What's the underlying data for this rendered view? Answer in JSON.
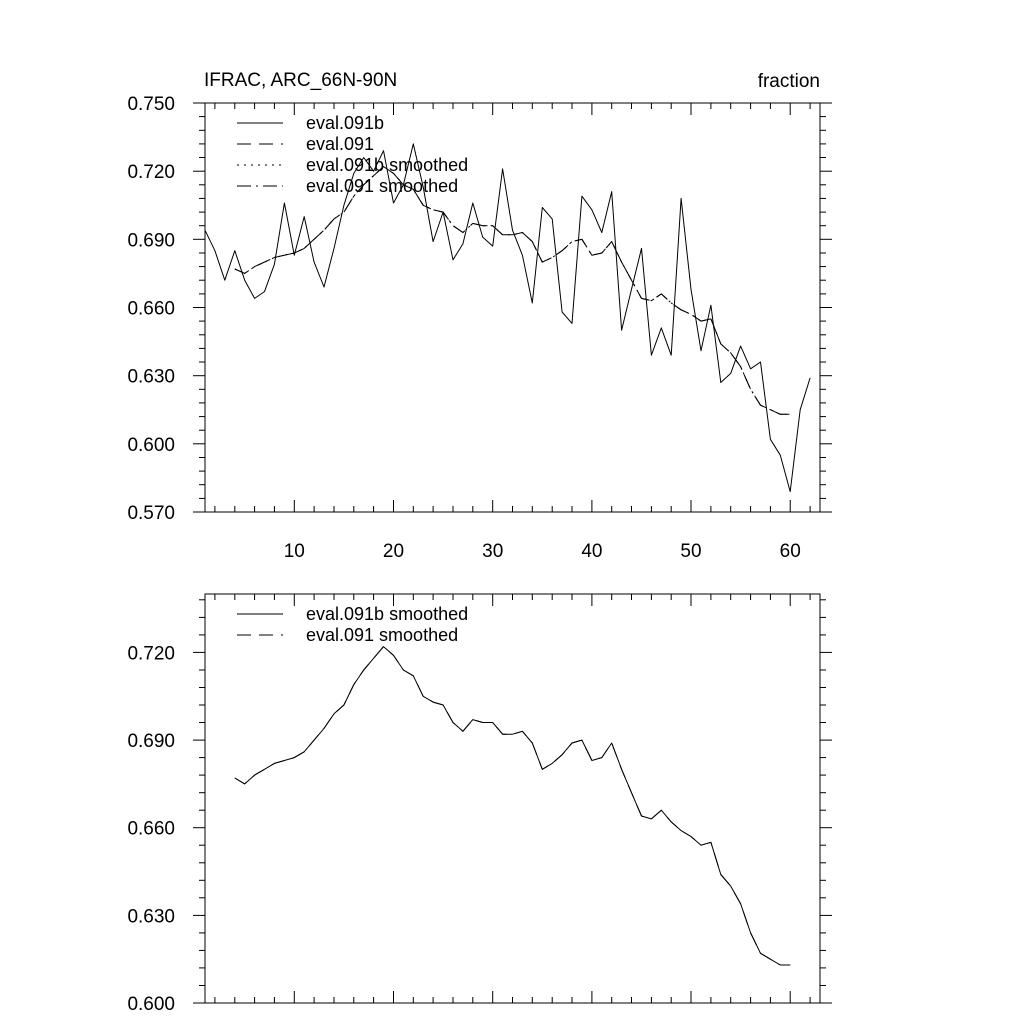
{
  "chart_data": [
    {
      "type": "line",
      "title": "IFRAC, ARC_66N-90N",
      "units": "fraction",
      "xlabel": "",
      "ylabel": "",
      "xlim": [
        1,
        63
      ],
      "ylim": [
        0.57,
        0.75
      ],
      "x_ticks": [
        10,
        20,
        30,
        40,
        50,
        60
      ],
      "x_tick_labels": [
        "10",
        "20",
        "30",
        "40",
        "50",
        "60"
      ],
      "y_ticks": [
        0.57,
        0.6,
        0.63,
        0.66,
        0.69,
        0.72,
        0.75
      ],
      "y_tick_labels": [
        "0.570",
        "0.600",
        "0.630",
        "0.660",
        "0.690",
        "0.720",
        "0.750"
      ],
      "legend": "top-left",
      "grid": false,
      "series": [
        {
          "name": "eval.091b",
          "dash": "solid",
          "x": [
            1,
            2,
            3,
            4,
            5,
            6,
            7,
            8,
            9,
            10,
            11,
            12,
            13,
            14,
            15,
            16,
            17,
            18,
            19,
            20,
            21,
            22,
            23,
            24,
            25,
            26,
            27,
            28,
            29,
            30,
            31,
            32,
            33,
            34,
            35,
            36,
            37,
            38,
            39,
            40,
            41,
            42,
            43,
            44,
            45,
            46,
            47,
            48,
            49,
            50,
            51,
            52,
            53,
            54,
            55,
            56,
            57,
            58,
            59,
            60,
            61,
            62
          ],
          "values": [
            0.694,
            0.685,
            0.672,
            0.685,
            0.672,
            0.664,
            0.667,
            0.679,
            0.706,
            0.683,
            0.7,
            0.68,
            0.669,
            0.686,
            0.705,
            0.719,
            0.726,
            0.72,
            0.729,
            0.706,
            0.714,
            0.732,
            0.713,
            0.689,
            0.702,
            0.681,
            0.688,
            0.706,
            0.691,
            0.687,
            0.721,
            0.694,
            0.683,
            0.662,
            0.704,
            0.699,
            0.658,
            0.653,
            0.709,
            0.703,
            0.693,
            0.711,
            0.65,
            0.668,
            0.686,
            0.639,
            0.651,
            0.639,
            0.708,
            0.668,
            0.641,
            0.661,
            0.627,
            0.631,
            0.643,
            0.633,
            0.636,
            0.602,
            0.595,
            0.579,
            0.615,
            0.629
          ]
        },
        {
          "name": "eval.091",
          "dash": "dash",
          "x": [
            4,
            5,
            6,
            7,
            8,
            9,
            10,
            11,
            12,
            13,
            14,
            15,
            16,
            17,
            18,
            19,
            20,
            21,
            22,
            23,
            24,
            25,
            26,
            27,
            28,
            29,
            30,
            31,
            32,
            33,
            34,
            35,
            36,
            37,
            38,
            39,
            40,
            41,
            42,
            43,
            44,
            45,
            46,
            47,
            48,
            49,
            50,
            51,
            52,
            53,
            54,
            55,
            56,
            57,
            58,
            59,
            60
          ],
          "values": [
            0.677,
            0.675,
            0.678,
            0.68,
            0.682,
            0.683,
            0.684,
            0.686,
            0.69,
            0.694,
            0.699,
            0.702,
            0.709,
            0.714,
            0.718,
            0.722,
            0.719,
            0.714,
            0.712,
            0.705,
            0.703,
            0.702,
            0.696,
            0.693,
            0.697,
            0.696,
            0.696,
            0.692,
            0.692,
            0.693,
            0.689,
            0.68,
            0.682,
            0.685,
            0.689,
            0.69,
            0.683,
            0.684,
            0.689,
            0.68,
            0.672,
            0.664,
            0.663,
            0.666,
            0.662,
            0.659,
            0.657,
            0.654,
            0.655,
            0.644,
            0.64,
            0.634,
            0.624,
            0.617,
            0.615,
            0.613,
            0.613
          ]
        },
        {
          "name": "eval.091b smoothed",
          "dash": "dot",
          "x": [
            4,
            5,
            6,
            7,
            8,
            9,
            10,
            11,
            12,
            13,
            14,
            15,
            16,
            17,
            18,
            19,
            20,
            21,
            22,
            23,
            24,
            25,
            26,
            27,
            28,
            29,
            30,
            31,
            32,
            33,
            34,
            35,
            36,
            37,
            38,
            39,
            40,
            41,
            42,
            43,
            44,
            45,
            46,
            47,
            48,
            49,
            50,
            51,
            52,
            53,
            54,
            55,
            56,
            57,
            58,
            59,
            60
          ],
          "values": [
            0.677,
            0.675,
            0.678,
            0.68,
            0.682,
            0.683,
            0.684,
            0.686,
            0.69,
            0.694,
            0.699,
            0.702,
            0.709,
            0.714,
            0.718,
            0.722,
            0.719,
            0.714,
            0.712,
            0.705,
            0.703,
            0.702,
            0.696,
            0.693,
            0.697,
            0.696,
            0.696,
            0.692,
            0.692,
            0.693,
            0.689,
            0.68,
            0.682,
            0.685,
            0.689,
            0.69,
            0.683,
            0.684,
            0.689,
            0.68,
            0.672,
            0.664,
            0.663,
            0.666,
            0.662,
            0.659,
            0.657,
            0.654,
            0.655,
            0.644,
            0.64,
            0.634,
            0.624,
            0.617,
            0.615,
            0.613,
            0.613
          ]
        },
        {
          "name": "eval.091 smoothed",
          "dash": "dashdot",
          "x": [
            4,
            5,
            6,
            7,
            8,
            9,
            10,
            11,
            12,
            13,
            14,
            15,
            16,
            17,
            18,
            19,
            20,
            21,
            22,
            23,
            24,
            25,
            26,
            27,
            28,
            29,
            30,
            31,
            32,
            33,
            34,
            35,
            36,
            37,
            38,
            39,
            40,
            41,
            42,
            43,
            44,
            45,
            46,
            47,
            48,
            49,
            50,
            51,
            52,
            53,
            54,
            55,
            56,
            57,
            58,
            59,
            60
          ],
          "values": [
            0.677,
            0.675,
            0.678,
            0.68,
            0.682,
            0.683,
            0.684,
            0.686,
            0.69,
            0.694,
            0.699,
            0.702,
            0.709,
            0.714,
            0.718,
            0.722,
            0.719,
            0.714,
            0.712,
            0.705,
            0.703,
            0.702,
            0.696,
            0.693,
            0.697,
            0.696,
            0.696,
            0.692,
            0.692,
            0.693,
            0.689,
            0.68,
            0.682,
            0.685,
            0.689,
            0.69,
            0.683,
            0.684,
            0.689,
            0.68,
            0.672,
            0.664,
            0.663,
            0.666,
            0.662,
            0.659,
            0.657,
            0.654,
            0.655,
            0.644,
            0.64,
            0.634,
            0.624,
            0.617,
            0.615,
            0.613,
            0.613
          ]
        }
      ]
    },
    {
      "type": "line",
      "title": "",
      "units": "",
      "xlabel": "",
      "ylabel": "",
      "xlim": [
        1,
        63
      ],
      "ylim": [
        0.6,
        0.74
      ],
      "x_ticks": [
        10,
        20,
        30,
        40,
        50,
        60
      ],
      "x_tick_labels": [],
      "y_ticks": [
        0.6,
        0.63,
        0.66,
        0.69,
        0.72
      ],
      "y_tick_labels": [
        "0.600",
        "0.630",
        "0.660",
        "0.690",
        "0.720"
      ],
      "legend": "top-left",
      "grid": false,
      "series": [
        {
          "name": "eval.091b smoothed",
          "dash": "solid",
          "x": [
            4,
            5,
            6,
            7,
            8,
            9,
            10,
            11,
            12,
            13,
            14,
            15,
            16,
            17,
            18,
            19,
            20,
            21,
            22,
            23,
            24,
            25,
            26,
            27,
            28,
            29,
            30,
            31,
            32,
            33,
            34,
            35,
            36,
            37,
            38,
            39,
            40,
            41,
            42,
            43,
            44,
            45,
            46,
            47,
            48,
            49,
            50,
            51,
            52,
            53,
            54,
            55,
            56,
            57,
            58,
            59,
            60
          ],
          "values": [
            0.677,
            0.675,
            0.678,
            0.68,
            0.682,
            0.683,
            0.684,
            0.686,
            0.69,
            0.694,
            0.699,
            0.702,
            0.709,
            0.714,
            0.718,
            0.722,
            0.719,
            0.714,
            0.712,
            0.705,
            0.703,
            0.702,
            0.696,
            0.693,
            0.697,
            0.696,
            0.696,
            0.692,
            0.692,
            0.693,
            0.689,
            0.68,
            0.682,
            0.685,
            0.689,
            0.69,
            0.683,
            0.684,
            0.689,
            0.68,
            0.672,
            0.664,
            0.663,
            0.666,
            0.662,
            0.659,
            0.657,
            0.654,
            0.655,
            0.644,
            0.64,
            0.634,
            0.624,
            0.617,
            0.615,
            0.613,
            0.613
          ]
        },
        {
          "name": "eval.091 smoothed",
          "dash": "dash",
          "x": [
            4,
            5,
            6,
            7,
            8,
            9,
            10,
            11,
            12,
            13,
            14,
            15,
            16,
            17,
            18,
            19,
            20,
            21,
            22,
            23,
            24,
            25,
            26,
            27,
            28,
            29,
            30,
            31,
            32,
            33,
            34,
            35,
            36,
            37,
            38,
            39,
            40,
            41,
            42,
            43,
            44,
            45,
            46,
            47,
            48,
            49,
            50,
            51,
            52,
            53,
            54,
            55,
            56,
            57,
            58,
            59,
            60
          ],
          "values": [
            0.677,
            0.675,
            0.678,
            0.68,
            0.682,
            0.683,
            0.684,
            0.686,
            0.69,
            0.694,
            0.699,
            0.702,
            0.709,
            0.714,
            0.718,
            0.722,
            0.719,
            0.714,
            0.712,
            0.705,
            0.703,
            0.702,
            0.696,
            0.693,
            0.697,
            0.696,
            0.696,
            0.692,
            0.692,
            0.693,
            0.689,
            0.68,
            0.682,
            0.685,
            0.689,
            0.69,
            0.683,
            0.684,
            0.689,
            0.68,
            0.672,
            0.664,
            0.663,
            0.666,
            0.662,
            0.659,
            0.657,
            0.654,
            0.655,
            0.644,
            0.64,
            0.634,
            0.624,
            0.617,
            0.615,
            0.613,
            0.613
          ]
        }
      ]
    }
  ]
}
